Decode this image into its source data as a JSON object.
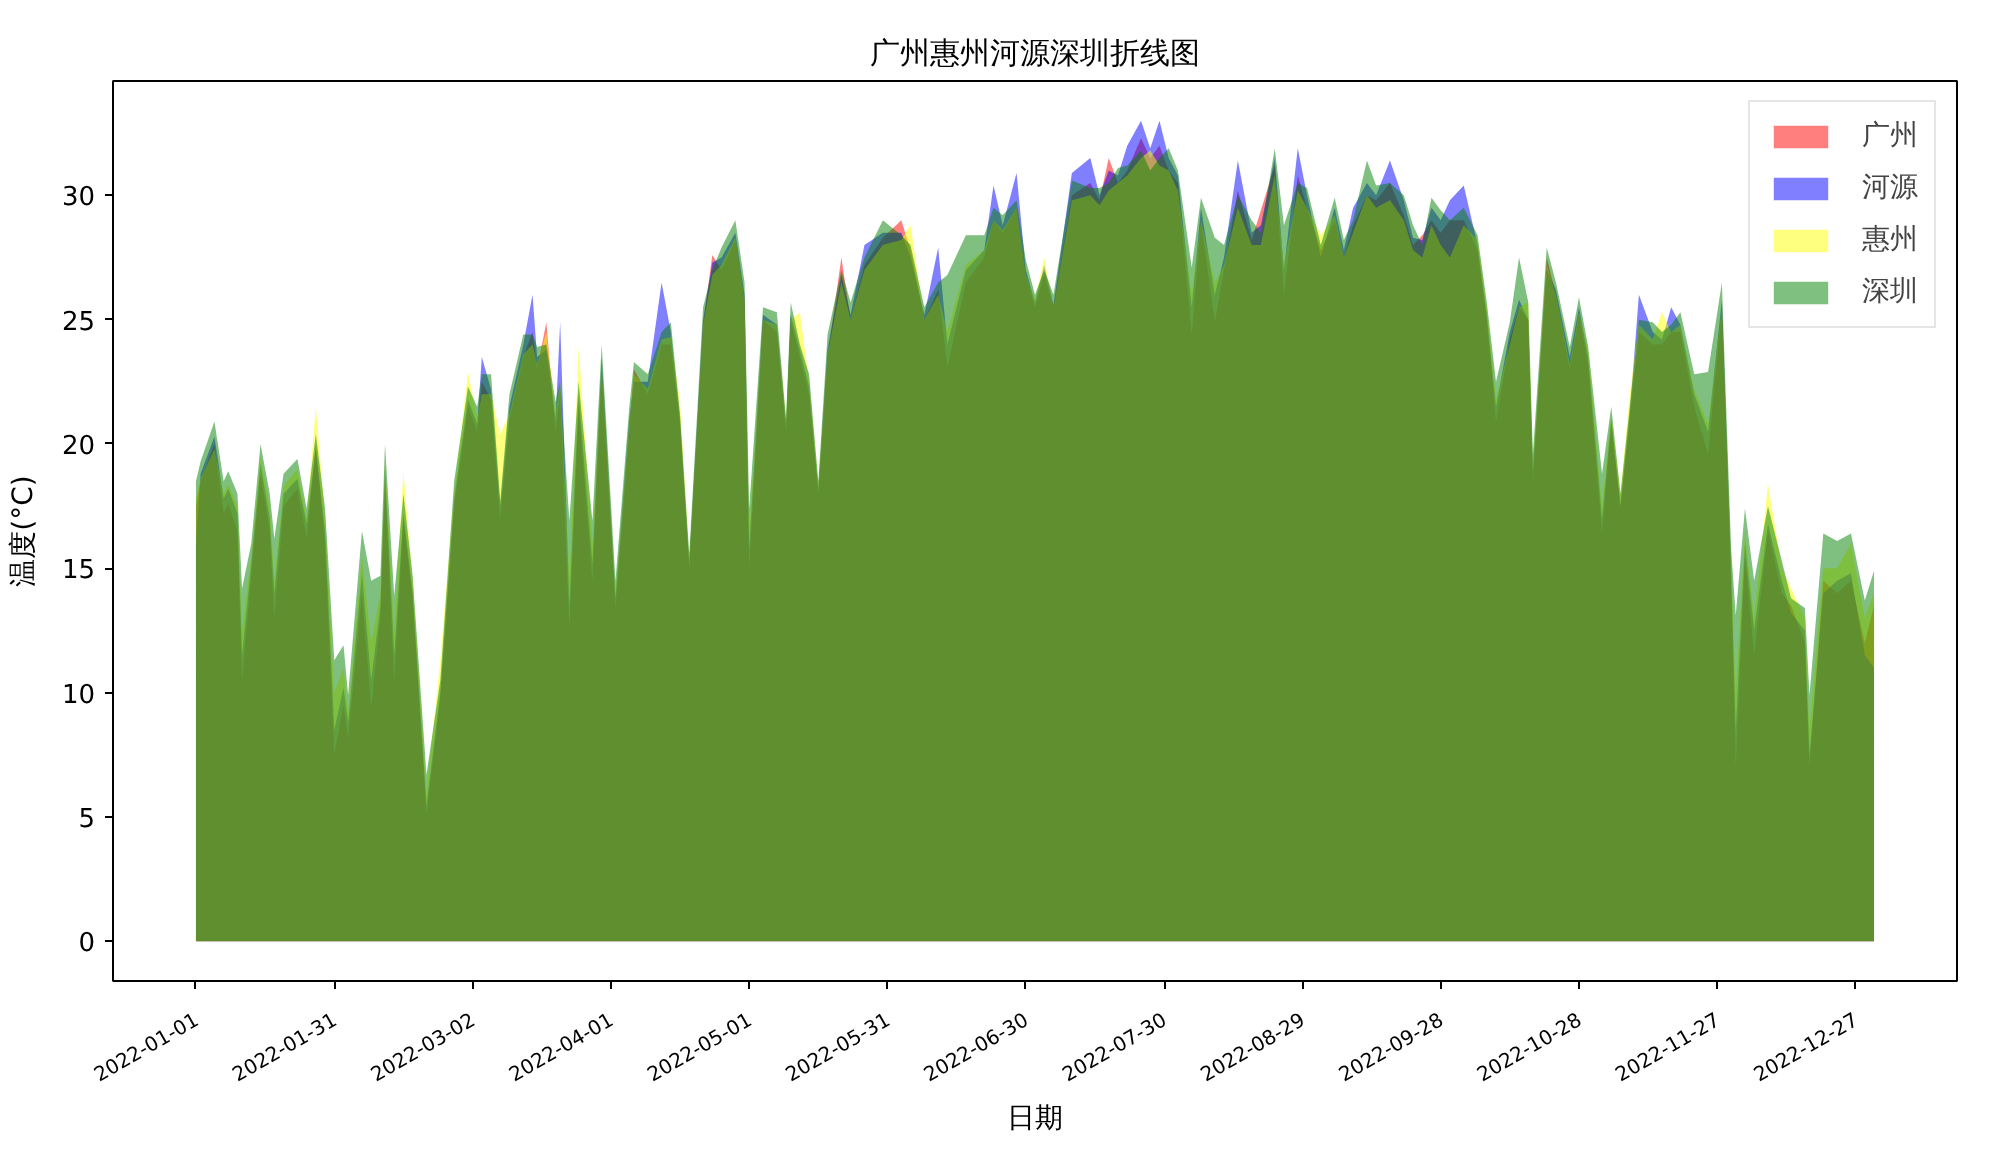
{
  "chart_data": {
    "type": "area",
    "title": "广州惠州河源深圳折线图",
    "xlabel": "日期",
    "ylabel": "温度(°C)",
    "legend": "top right",
    "xlim": [
      "2021-12-14",
      "2023-01-18"
    ],
    "ylim": [
      -1.6,
      34.6
    ],
    "xticks": [
      "2022-01-01",
      "2022-01-31",
      "2022-03-02",
      "2022-04-01",
      "2022-05-01",
      "2022-05-31",
      "2022-06-30",
      "2022-07-30",
      "2022-08-29",
      "2022-09-28",
      "2022-10-28",
      "2022-11-27",
      "2022-12-27"
    ],
    "yticks": [
      0,
      5,
      10,
      15,
      20,
      25,
      30
    ],
    "x": [
      "2022-01-01",
      "2022-01-02",
      "2022-01-05",
      "2022-01-07",
      "2022-01-08",
      "2022-01-10",
      "2022-01-11",
      "2022-01-13",
      "2022-01-15",
      "2022-01-17",
      "2022-01-18",
      "2022-01-20",
      "2022-01-23",
      "2022-01-25",
      "2022-01-27",
      "2022-01-29",
      "2022-01-31",
      "2022-02-02",
      "2022-02-03",
      "2022-02-06",
      "2022-02-08",
      "2022-02-10",
      "2022-02-11",
      "2022-02-13",
      "2022-02-15",
      "2022-02-17",
      "2022-02-20",
      "2022-02-23",
      "2022-02-26",
      "2022-03-01",
      "2022-03-03",
      "2022-03-04",
      "2022-03-06",
      "2022-03-08",
      "2022-03-10",
      "2022-03-13",
      "2022-03-15",
      "2022-03-16",
      "2022-03-18",
      "2022-03-20",
      "2022-03-21",
      "2022-03-23",
      "2022-03-25",
      "2022-03-28",
      "2022-03-30",
      "2022-04-02",
      "2022-04-05",
      "2022-04-06",
      "2022-04-09",
      "2022-04-12",
      "2022-04-14",
      "2022-04-16",
      "2022-04-18",
      "2022-04-21",
      "2022-04-23",
      "2022-04-25",
      "2022-04-28",
      "2022-04-30",
      "2022-05-01",
      "2022-05-04",
      "2022-05-07",
      "2022-05-09",
      "2022-05-10",
      "2022-05-12",
      "2022-05-14",
      "2022-05-16",
      "2022-05-18",
      "2022-05-21",
      "2022-05-23",
      "2022-05-26",
      "2022-05-30",
      "2022-06-03",
      "2022-06-05",
      "2022-06-08",
      "2022-06-11",
      "2022-06-13",
      "2022-06-17",
      "2022-06-21",
      "2022-06-23",
      "2022-06-25",
      "2022-06-28",
      "2022-06-30",
      "2022-07-02",
      "2022-07-04",
      "2022-07-06",
      "2022-07-10",
      "2022-07-14",
      "2022-07-16",
      "2022-07-18",
      "2022-07-20",
      "2022-07-22",
      "2022-07-25",
      "2022-07-27",
      "2022-07-29",
      "2022-07-31",
      "2022-08-02",
      "2022-08-05",
      "2022-08-07",
      "2022-08-10",
      "2022-08-12",
      "2022-08-15",
      "2022-08-18",
      "2022-08-20",
      "2022-08-23",
      "2022-08-25",
      "2022-08-28",
      "2022-08-30",
      "2022-09-02",
      "2022-09-05",
      "2022-09-07",
      "2022-09-09",
      "2022-09-12",
      "2022-09-14",
      "2022-09-17",
      "2022-09-20",
      "2022-09-22",
      "2022-09-24",
      "2022-09-26",
      "2022-09-28",
      "2022-09-30",
      "2022-10-03",
      "2022-10-06",
      "2022-10-08",
      "2022-10-10",
      "2022-10-13",
      "2022-10-15",
      "2022-10-17",
      "2022-10-18",
      "2022-10-21",
      "2022-10-23",
      "2022-10-26",
      "2022-10-28",
      "2022-10-30",
      "2022-11-02",
      "2022-11-04",
      "2022-11-06",
      "2022-11-08",
      "2022-11-10",
      "2022-11-13",
      "2022-11-15",
      "2022-11-17",
      "2022-11-19",
      "2022-11-22",
      "2022-11-25",
      "2022-11-28",
      "2022-11-30",
      "2022-12-01",
      "2022-12-03",
      "2022-12-05",
      "2022-12-08",
      "2022-12-11",
      "2022-12-13",
      "2022-12-16",
      "2022-12-17",
      "2022-12-20",
      "2022-12-23",
      "2022-12-26",
      "2022-12-29",
      "2022-12-31"
    ],
    "series": [
      {
        "name": "广州",
        "color": "#ff0000",
        "values": [
          17.5,
          18.5,
          20.0,
          17.2,
          17.6,
          16.5,
          10.5,
          14.8,
          18.8,
          16.5,
          13.0,
          17.5,
          18.2,
          16.2,
          20.0,
          16.0,
          7.5,
          9.5,
          8.2,
          14.0,
          9.4,
          13.0,
          18.5,
          10.5,
          17.0,
          13.8,
          5.1,
          9.8,
          17.5,
          21.5,
          20.5,
          22.5,
          21.8,
          17.0,
          21.0,
          23.5,
          24.5,
          23.0,
          24.9,
          20.5,
          22.0,
          12.6,
          21.5,
          14.5,
          23.0,
          13.4,
          20.5,
          23.0,
          22.0,
          24.0,
          24.0,
          20.8,
          15.0,
          24.8,
          27.6,
          27.0,
          28.2,
          25.8,
          15.0,
          25.0,
          24.5,
          20.5,
          25.0,
          23.5,
          22.0,
          18.0,
          23.5,
          27.5,
          25.0,
          27.2,
          28.3,
          29.0,
          27.8,
          25.0,
          26.2,
          23.1,
          26.5,
          27.5,
          29.0,
          28.5,
          29.5,
          26.8,
          25.5,
          26.8,
          25.5,
          30.0,
          30.5,
          29.8,
          31.5,
          30.5,
          31.0,
          32.3,
          31.5,
          32.0,
          31.0,
          30.5,
          24.4,
          29.0,
          24.9,
          27.0,
          30.2,
          28.2,
          29.4,
          31.2,
          26.0,
          30.8,
          29.5,
          27.8,
          29.0,
          27.5,
          28.8,
          30.0,
          29.8,
          30.5,
          29.2,
          28.0,
          28.4,
          29.0,
          28.5,
          29.0,
          29.0,
          27.8,
          25.0,
          20.9,
          24.2,
          25.5,
          25.0,
          18.5,
          27.5,
          26.0,
          23.0,
          25.2,
          23.2,
          16.4,
          20.8,
          17.5,
          21.0,
          24.5,
          24.0,
          24.0,
          24.5,
          24.5,
          21.5,
          19.6,
          25.5,
          14.5,
          7.0,
          15.5,
          11.5,
          16.5,
          14.0,
          13.5,
          12.0,
          7.0,
          14.5,
          14.0,
          14.5,
          12.0,
          13.5
        ]
      },
      {
        "name": "河源",
        "color": "#0000ff",
        "values": [
          16.0,
          18.8,
          20.3,
          17.8,
          18.2,
          17.2,
          11.5,
          15.2,
          19.2,
          17.0,
          14.0,
          18.0,
          18.6,
          16.8,
          19.8,
          16.5,
          8.5,
          10.2,
          8.8,
          14.8,
          10.5,
          13.5,
          19.0,
          11.5,
          17.2,
          14.0,
          5.5,
          10.0,
          17.8,
          21.8,
          20.8,
          23.5,
          22.2,
          17.5,
          21.5,
          24.0,
          26.0,
          23.5,
          23.8,
          21.0,
          24.9,
          13.5,
          22.0,
          15.2,
          23.5,
          13.8,
          21.0,
          22.5,
          22.5,
          26.5,
          24.5,
          21.0,
          15.2,
          25.0,
          27.3,
          27.5,
          28.5,
          26.0,
          15.8,
          25.2,
          24.8,
          20.8,
          25.2,
          23.8,
          22.3,
          18.2,
          23.8,
          26.8,
          25.2,
          28.0,
          28.5,
          28.5,
          27.5,
          25.2,
          27.9,
          24.0,
          27.0,
          27.8,
          30.4,
          28.8,
          30.9,
          27.0,
          25.7,
          27.2,
          25.6,
          30.9,
          31.5,
          30.0,
          31.0,
          30.8,
          32.0,
          33.0,
          31.9,
          33.0,
          31.5,
          30.8,
          25.5,
          29.5,
          26.0,
          27.5,
          31.4,
          28.5,
          28.8,
          31.5,
          27.0,
          31.9,
          30.0,
          27.5,
          29.5,
          27.8,
          29.5,
          30.5,
          30.0,
          31.4,
          29.8,
          28.3,
          28.2,
          29.5,
          29.0,
          29.8,
          30.4,
          28.0,
          25.2,
          21.5,
          24.5,
          25.8,
          25.0,
          19.0,
          27.0,
          26.2,
          23.5,
          25.5,
          23.5,
          17.0,
          21.0,
          17.5,
          21.2,
          26.0,
          24.5,
          24.2,
          25.5,
          24.8,
          22.0,
          20.5,
          25.8,
          15.0,
          8.5,
          16.0,
          12.5,
          16.8,
          14.5,
          13.2,
          12.5,
          7.5,
          14.0,
          14.5,
          14.8,
          11.5,
          11.0
        ]
      },
      {
        "name": "惠州",
        "color": "#ffff00",
        "values": [
          17.8,
          18.6,
          19.8,
          18.0,
          18.4,
          17.5,
          12.5,
          15.5,
          19.5,
          17.5,
          14.5,
          18.3,
          19.0,
          17.0,
          21.5,
          17.0,
          10.0,
          11.0,
          9.2,
          15.5,
          12.0,
          14.0,
          19.3,
          12.5,
          18.9,
          14.5,
          6.0,
          11.3,
          18.0,
          22.9,
          21.0,
          22.0,
          22.0,
          20.4,
          21.2,
          23.6,
          24.0,
          23.2,
          24.5,
          21.2,
          22.5,
          14.5,
          23.9,
          16.0,
          23.2,
          14.0,
          20.8,
          22.8,
          22.2,
          24.2,
          24.3,
          21.7,
          15.3,
          24.8,
          26.8,
          27.2,
          28.3,
          25.8,
          16.5,
          25.0,
          24.8,
          21.0,
          25.0,
          25.3,
          22.5,
          18.4,
          23.6,
          26.5,
          25.0,
          27.0,
          28.0,
          28.2,
          28.8,
          25.0,
          26.0,
          24.5,
          27.2,
          27.8,
          29.0,
          28.6,
          29.5,
          26.8,
          25.8,
          27.5,
          25.5,
          29.8,
          30.0,
          29.6,
          30.2,
          30.5,
          30.8,
          31.5,
          31.8,
          31.2,
          31.0,
          30.2,
          26.0,
          29.0,
          26.5,
          27.2,
          29.5,
          28.0,
          28.0,
          30.8,
          27.2,
          30.2,
          29.5,
          28.4,
          29.2,
          27.5,
          28.5,
          30.0,
          29.5,
          29.8,
          29.0,
          27.8,
          27.5,
          28.8,
          28.0,
          27.5,
          28.8,
          28.2,
          25.5,
          21.8,
          24.0,
          25.5,
          25.7,
          19.2,
          27.2,
          26.0,
          23.2,
          25.3,
          23.8,
          17.5,
          21.2,
          18.0,
          22.0,
          24.8,
          24.2,
          25.3,
          24.5,
          24.8,
          22.2,
          20.8,
          25.5,
          15.2,
          10.0,
          16.5,
          13.0,
          18.4,
          15.0,
          14.2,
          13.0,
          8.5,
          15.0,
          15.0,
          16.0,
          13.0,
          14.0
        ]
      },
      {
        "name": "深圳",
        "color": "#008000",
        "values": [
          18.5,
          19.3,
          20.9,
          18.5,
          18.9,
          18.0,
          14.2,
          16.0,
          20.0,
          18.0,
          16.2,
          18.8,
          19.4,
          17.4,
          20.4,
          17.4,
          11.3,
          11.9,
          9.9,
          16.5,
          14.5,
          14.7,
          20.0,
          13.9,
          18.0,
          14.7,
          6.7,
          10.5,
          18.5,
          22.3,
          21.5,
          22.8,
          22.8,
          17.7,
          22.0,
          24.4,
          24.4,
          23.9,
          24.0,
          21.7,
          22.5,
          16.9,
          22.5,
          16.9,
          24.0,
          14.5,
          21.5,
          23.3,
          22.8,
          24.5,
          24.9,
          21.2,
          15.6,
          25.5,
          27.0,
          27.9,
          29.0,
          26.5,
          17.4,
          25.5,
          25.3,
          21.0,
          25.7,
          24.0,
          22.8,
          18.5,
          24.4,
          27.0,
          25.7,
          27.5,
          29.0,
          28.4,
          28.0,
          25.5,
          26.5,
          26.8,
          28.4,
          28.4,
          29.5,
          29.2,
          29.8,
          27.4,
          26.0,
          27.0,
          26.0,
          30.6,
          30.3,
          30.3,
          30.5,
          31.1,
          31.2,
          31.8,
          31.0,
          31.5,
          31.9,
          31.0,
          27.1,
          29.9,
          28.3,
          28.0,
          30.0,
          29.0,
          28.5,
          31.9,
          28.8,
          30.5,
          30.3,
          28.0,
          29.9,
          28.2,
          29.0,
          31.4,
          30.4,
          30.5,
          30.0,
          28.8,
          28.0,
          29.9,
          29.4,
          29.0,
          29.5,
          28.4,
          25.7,
          22.5,
          24.9,
          27.5,
          25.7,
          19.6,
          27.9,
          26.5,
          23.9,
          25.9,
          23.9,
          18.8,
          21.5,
          18.0,
          21.5,
          25.0,
          24.9,
          24.5,
          24.8,
          25.3,
          22.8,
          22.9,
          26.5,
          15.8,
          13.1,
          17.4,
          14.5,
          17.5,
          15.3,
          13.8,
          13.4,
          9.9,
          16.4,
          16.1,
          16.4,
          13.7,
          14.9
        ]
      }
    ]
  }
}
